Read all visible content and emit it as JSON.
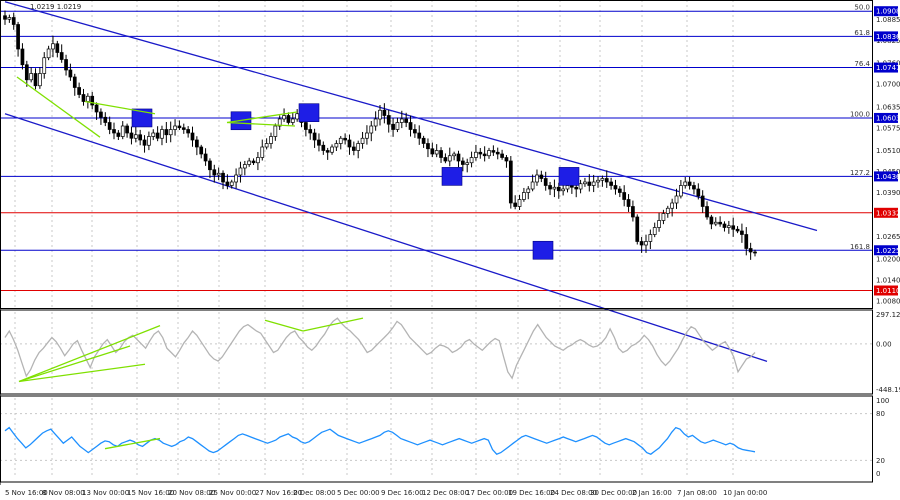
{
  "header": {
    "ohlc_readout": "1.0219 1.0219"
  },
  "colors": {
    "level_blue": "#0000cc",
    "level_red": "#e00000",
    "channel": "#1a1ac8",
    "divergence": "#7fe000",
    "candle": "#000000",
    "cci_line": "#b4b4b4",
    "rsi_line": "#1e90ff",
    "marker": "#1e1ee6"
  },
  "chart_data": [
    {
      "type": "candlestick",
      "pane": "price",
      "ylim": [
        1.006,
        1.094
      ],
      "price_ticks": [
        "1.0080",
        "1.0140",
        "1.0200",
        "1.0265",
        "1.0390",
        "1.0450",
        "1.0510",
        "1.0575",
        "1.0635",
        "1.0700",
        "1.0760",
        "1.0825",
        "1.0885"
      ],
      "levels": [
        {
          "price": 1.0908,
          "label": "1.0908",
          "color": "#0000cc",
          "fib": "50.0"
        },
        {
          "price": 1.0836,
          "label": "1.0836",
          "color": "#0000cc",
          "fib": "61.8"
        },
        {
          "price": 1.0747,
          "label": "1.0747",
          "color": "#0000cc",
          "fib": "76.4"
        },
        {
          "price": 1.0603,
          "label": "1.0603",
          "color": "#0000cc",
          "fib": "100.0"
        },
        {
          "price": 1.0436,
          "label": "1.0436",
          "color": "#0000cc",
          "fib": "127.2"
        },
        {
          "price": 1.0332,
          "label": "1.0332",
          "color": "#e00000",
          "fib": ""
        },
        {
          "price": 1.0225,
          "label": "1.0225",
          "color": "#0000cc",
          "fib": "161.8"
        },
        {
          "price": 1.011,
          "label": "1.0110",
          "color": "#e00000",
          "fib": ""
        }
      ],
      "channel_upper": [
        {
          "x": 0,
          "price": 1.0935
        },
        {
          "x": 640,
          "price": 1.042
        }
      ],
      "channel_lower": [
        {
          "x": 0,
          "price": 1.0615
        },
        {
          "x": 600,
          "price": 1.0058
        }
      ],
      "divergence_lines": [
        [
          {
            "x": 12,
            "price": 1.072
          },
          {
            "x": 95,
            "price": 1.0548
          }
        ],
        [
          {
            "x": 80,
            "price": 1.065
          },
          {
            "x": 150,
            "price": 1.0615
          }
        ],
        [
          {
            "x": 222,
            "price": 1.059
          },
          {
            "x": 292,
            "price": 1.062
          }
        ],
        [
          {
            "x": 222,
            "price": 1.059
          },
          {
            "x": 290,
            "price": 1.058
          }
        ]
      ],
      "markers": [
        {
          "x": 137,
          "price": 1.0603
        },
        {
          "x": 236,
          "price": 1.0595
        },
        {
          "x": 304,
          "price": 1.0618
        },
        {
          "x": 447,
          "price": 1.0436
        },
        {
          "x": 564,
          "price": 1.0436
        },
        {
          "x": 538,
          "price": 1.0225
        }
      ],
      "close": [
        1.0885,
        1.089,
        1.087,
        1.08,
        1.0755,
        1.0712,
        1.073,
        1.0695,
        1.073,
        1.0775,
        1.08,
        1.0815,
        1.079,
        1.077,
        1.074,
        1.072,
        1.069,
        1.067,
        1.065,
        1.0665,
        1.064,
        1.062,
        1.0605,
        1.059,
        1.057,
        1.056,
        1.055,
        1.058,
        1.056,
        1.0545,
        1.0555,
        1.054,
        1.0525,
        1.055,
        1.056,
        1.0545,
        1.057,
        1.0555,
        1.057,
        1.058,
        1.0575,
        1.057,
        1.056,
        1.054,
        1.052,
        1.05,
        1.048,
        1.0455,
        1.044,
        1.0445,
        1.042,
        1.041,
        1.042,
        1.044,
        1.046,
        1.047,
        1.048,
        1.0475,
        1.049,
        1.052,
        1.053,
        1.055,
        1.058,
        1.06,
        1.061,
        1.059,
        1.06,
        1.0615,
        1.059,
        1.057,
        1.056,
        1.054,
        1.0525,
        1.051,
        1.0505,
        1.052,
        1.053,
        1.0545,
        1.054,
        1.052,
        1.051,
        1.053,
        1.0545,
        1.056,
        1.058,
        1.06,
        1.0625,
        1.061,
        1.0585,
        1.057,
        1.059,
        1.06,
        1.059,
        1.057,
        1.056,
        1.0545,
        1.053,
        1.0515,
        1.05,
        1.051,
        1.049,
        1.048,
        1.0495,
        1.05,
        1.048,
        1.047,
        1.0475,
        1.049,
        1.0505,
        1.05,
        1.0495,
        1.051,
        1.0505,
        1.05,
        1.049,
        1.048,
        1.036,
        1.035,
        1.037,
        1.039,
        1.04,
        1.042,
        1.044,
        1.043,
        1.041,
        1.04,
        1.0405,
        1.0395,
        1.04,
        1.041,
        1.0405,
        1.04,
        1.0415,
        1.042,
        1.041,
        1.042,
        1.0425,
        1.043,
        1.042,
        1.041,
        1.04,
        1.039,
        1.037,
        1.035,
        1.032,
        1.025,
        1.024,
        1.025,
        1.027,
        1.029,
        1.031,
        1.033,
        1.0345,
        1.036,
        1.038,
        1.041,
        1.042,
        1.041,
        1.04,
        1.038,
        1.035,
        1.032,
        1.03,
        1.0305,
        1.03,
        1.029,
        1.0295,
        1.0285,
        1.028,
        1.027,
        1.023,
        1.022,
        1.0219
      ]
    },
    {
      "type": "line",
      "pane": "cci",
      "ylim": [
        -448.1957,
        297.1261
      ],
      "ticks": [
        "297.1261",
        "0.00",
        "-448.1957"
      ],
      "divergence_lines": [
        [
          {
            "x": 14,
            "value": -350
          },
          {
            "x": 155,
            "value": 170
          }
        ],
        [
          {
            "x": 14,
            "value": -350
          },
          {
            "x": 125,
            "value": -20
          }
        ],
        [
          {
            "x": 14,
            "value": -350
          },
          {
            "x": 140,
            "value": -190
          }
        ],
        [
          {
            "x": 260,
            "value": 220
          },
          {
            "x": 298,
            "value": 120
          }
        ],
        [
          {
            "x": 298,
            "value": 120
          },
          {
            "x": 358,
            "value": 240
          }
        ]
      ],
      "values": [
        60,
        120,
        40,
        -60,
        -180,
        -300,
        -240,
        -150,
        -80,
        -40,
        10,
        60,
        20,
        -40,
        -110,
        -60,
        0,
        30,
        -60,
        -140,
        -220,
        -120,
        -60,
        0,
        40,
        -20,
        -80,
        -40,
        20,
        60,
        80,
        40,
        0,
        -40,
        30,
        90,
        120,
        60,
        -40,
        -80,
        -120,
        -60,
        10,
        60,
        120,
        80,
        20,
        -40,
        -100,
        -140,
        -160,
        -120,
        -60,
        0,
        60,
        120,
        160,
        180,
        150,
        120,
        100,
        40,
        -20,
        -80,
        -60,
        0,
        60,
        100,
        120,
        60,
        20,
        -30,
        -60,
        -20,
        40,
        90,
        160,
        210,
        240,
        190,
        150,
        120,
        80,
        40,
        -20,
        -80,
        -60,
        -20,
        20,
        60,
        100,
        150,
        210,
        180,
        120,
        60,
        20,
        -20,
        -60,
        -100,
        -80,
        -40,
        -10,
        -20,
        -40,
        -80,
        -60,
        -30,
        20,
        40,
        0,
        -30,
        -60,
        -20,
        20,
        50,
        30,
        -120,
        -260,
        -320,
        -200,
        -120,
        -40,
        40,
        120,
        180,
        120,
        60,
        20,
        -20,
        -40,
        -60,
        -30,
        -10,
        20,
        40,
        20,
        -10,
        -30,
        -20,
        10,
        60,
        140,
        60,
        -40,
        -80,
        -60,
        -20,
        0,
        30,
        80,
        40,
        -20,
        -100,
        -160,
        -200,
        -160,
        -100,
        -40,
        40,
        110,
        160,
        140,
        80,
        20,
        -20,
        -60,
        -30,
        0,
        20,
        -40,
        -120,
        -260,
        -200,
        -140,
        -120,
        -80
      ]
    },
    {
      "type": "line",
      "pane": "rsi",
      "ylim": [
        0,
        100
      ],
      "ticks": [
        "100",
        "80",
        "20",
        "0"
      ],
      "divergence_lines": [
        [
          {
            "x": 100,
            "value": 35
          },
          {
            "x": 155,
            "value": 48
          }
        ]
      ],
      "values": [
        58,
        62,
        55,
        48,
        42,
        36,
        40,
        45,
        50,
        55,
        58,
        60,
        54,
        48,
        42,
        46,
        50,
        44,
        38,
        34,
        30,
        34,
        38,
        42,
        45,
        44,
        40,
        38,
        42,
        44,
        46,
        44,
        40,
        38,
        42,
        46,
        48,
        46,
        42,
        40,
        38,
        40,
        44,
        46,
        50,
        48,
        44,
        40,
        36,
        32,
        30,
        32,
        36,
        40,
        44,
        48,
        52,
        54,
        52,
        50,
        48,
        46,
        44,
        42,
        44,
        46,
        50,
        52,
        54,
        50,
        48,
        44,
        42,
        44,
        48,
        52,
        56,
        58,
        60,
        56,
        52,
        50,
        48,
        46,
        44,
        42,
        44,
        46,
        48,
        50,
        52,
        56,
        58,
        56,
        52,
        48,
        46,
        44,
        42,
        40,
        42,
        44,
        46,
        44,
        42,
        40,
        42,
        44,
        46,
        48,
        46,
        44,
        42,
        44,
        46,
        48,
        46,
        34,
        28,
        30,
        34,
        38,
        42,
        46,
        50,
        52,
        50,
        48,
        46,
        44,
        42,
        44,
        46,
        48,
        50,
        48,
        46,
        44,
        46,
        48,
        50,
        52,
        50,
        46,
        42,
        40,
        42,
        44,
        46,
        48,
        46,
        44,
        40,
        36,
        30,
        28,
        32,
        36,
        42,
        48,
        56,
        62,
        60,
        54,
        50,
        52,
        48,
        44,
        42,
        44,
        46,
        44,
        42,
        40,
        42,
        40,
        36,
        34,
        33,
        32,
        31
      ]
    }
  ],
  "time_axis": [
    "5 Nov 16:00",
    "8 Nov 08:00",
    "13 Nov 00:00",
    "15 Nov 16:00",
    "20 Nov 08:00",
    "25 Nov 00:00",
    "27 Nov 16:00",
    "2 Dec 08:00",
    "5 Dec 00:00",
    "9 Dec 16:00",
    "12 Dec 08:00",
    "17 Dec 00:00",
    "19 Dec 16:00",
    "24 Dec 08:00",
    "30 Dec 00:00",
    "2 Jan 16:00",
    "7 Jan 08:00",
    "10 Jan 00:00"
  ]
}
